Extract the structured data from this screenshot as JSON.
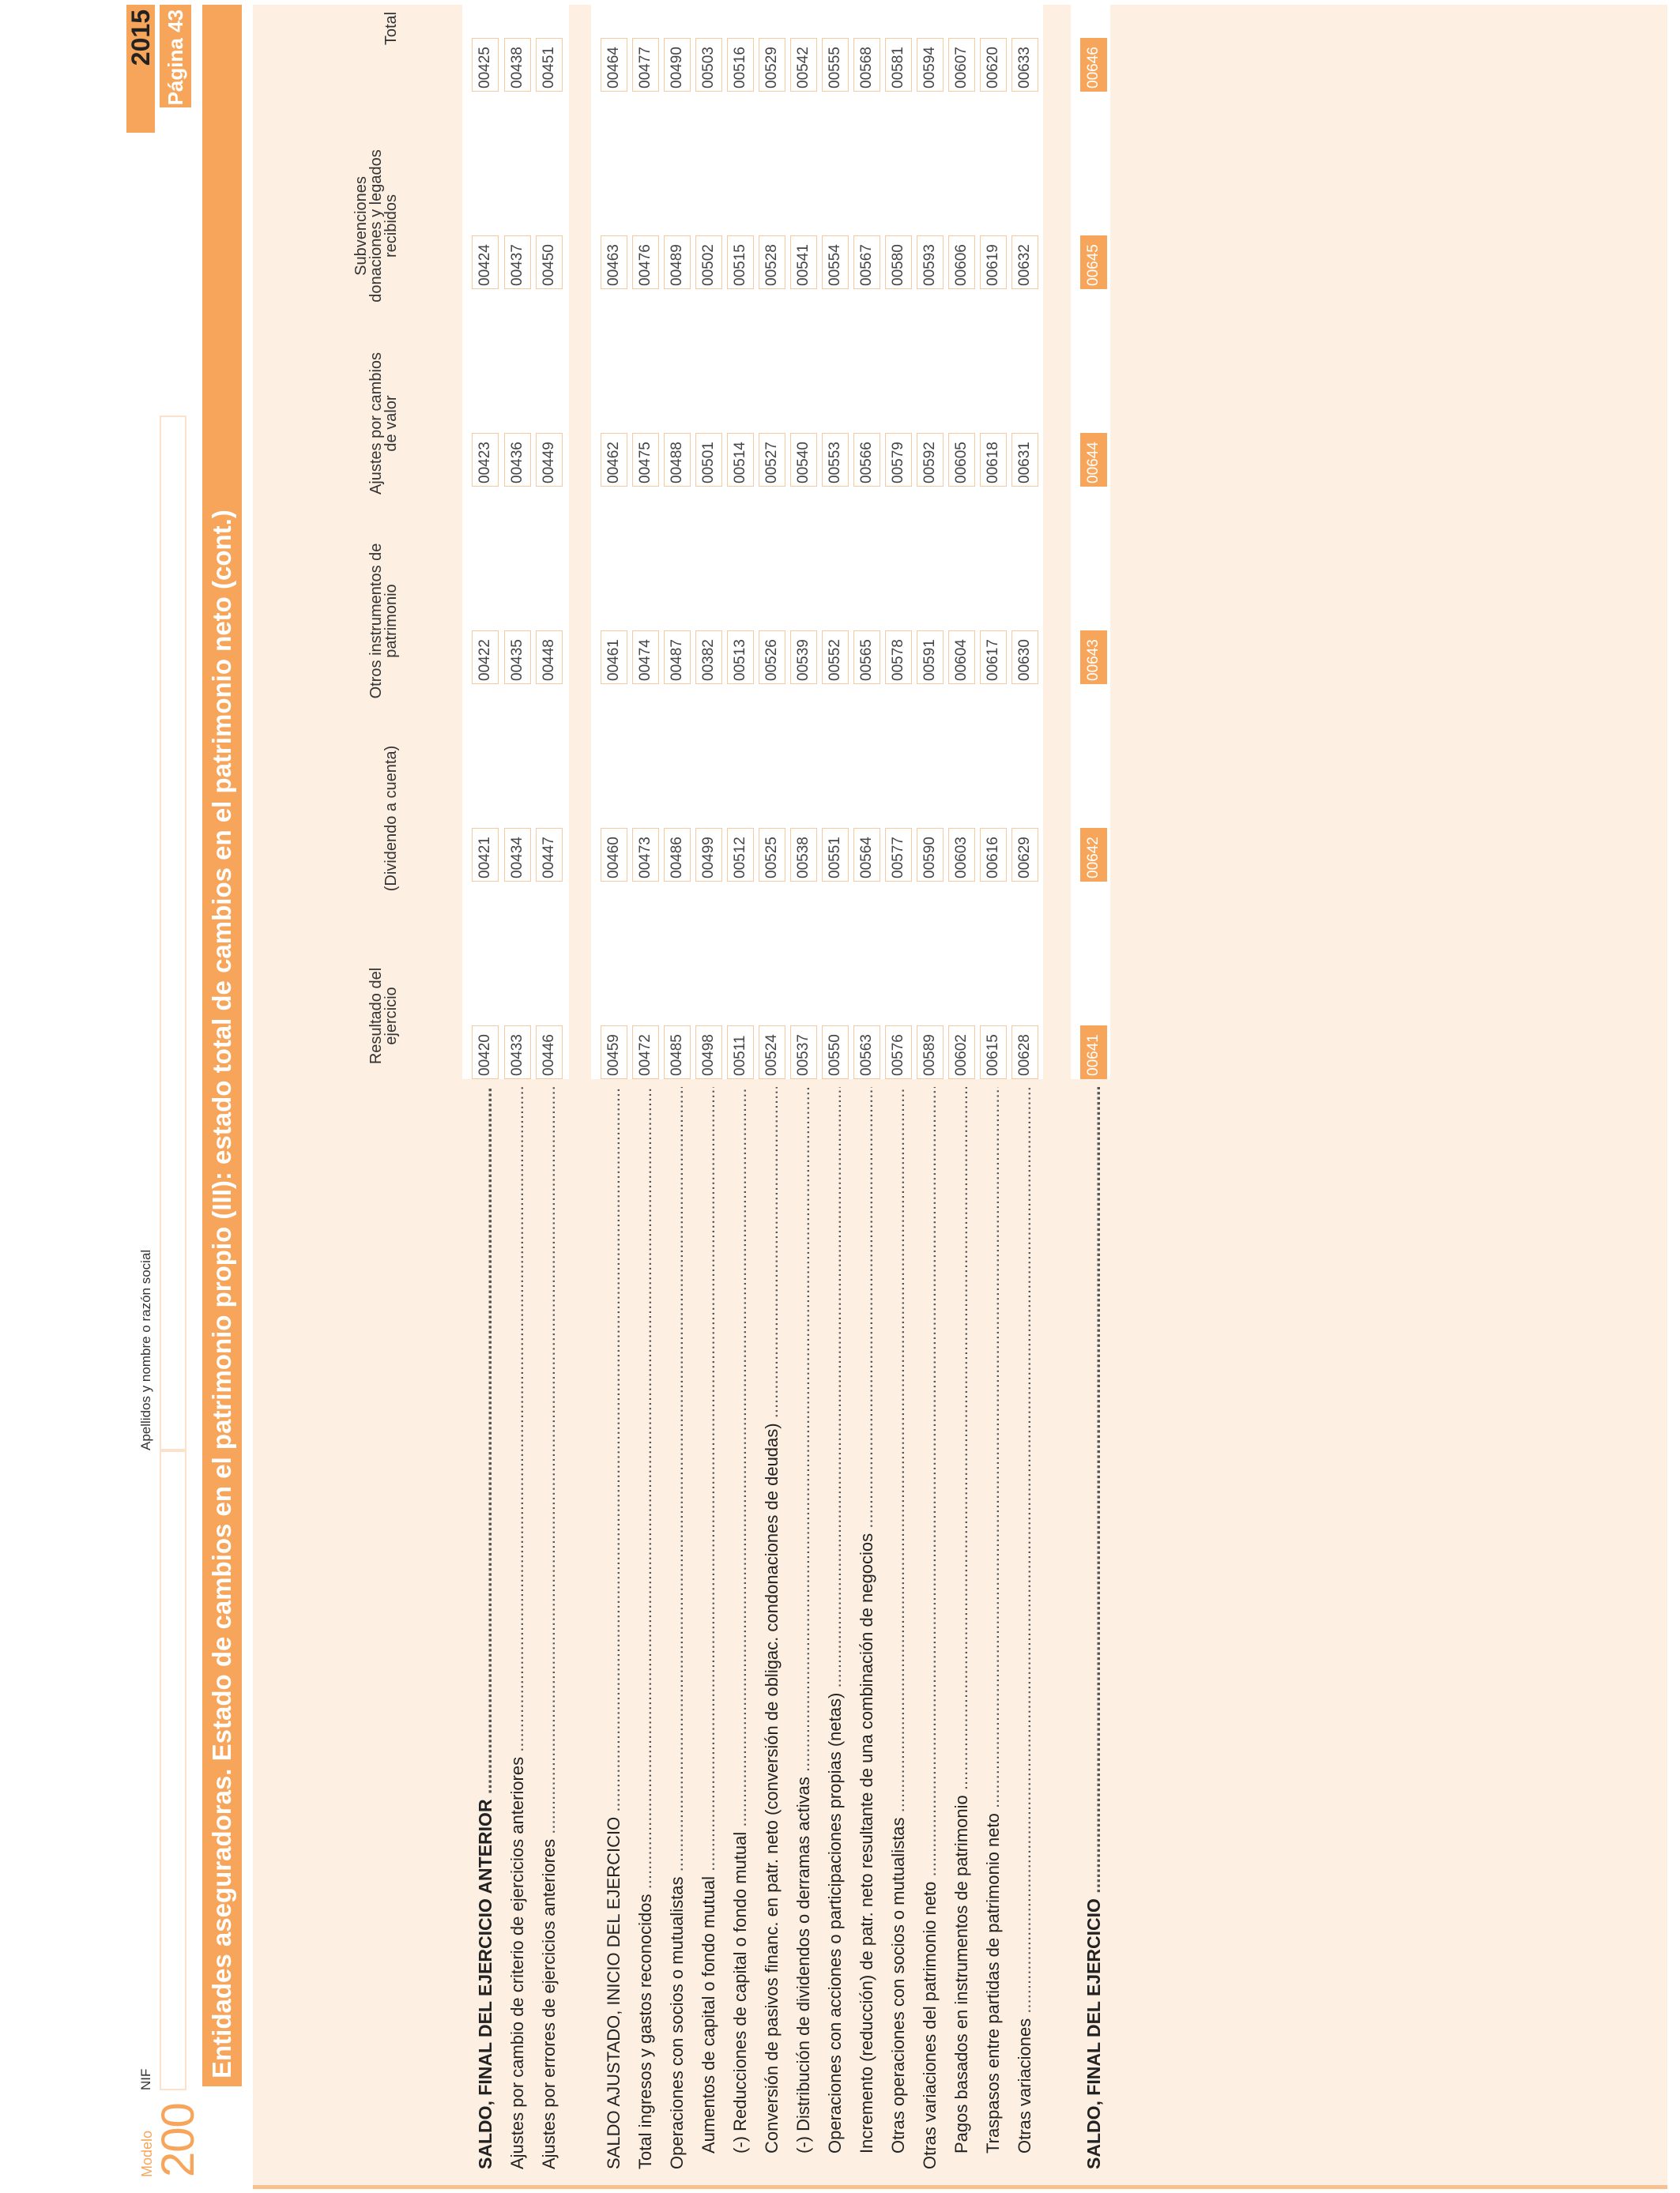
{
  "form": {
    "modelo_label": "Modelo",
    "modelo_number": "200",
    "nif_label": "NIF",
    "name_label": "Apellidos y nombre o razón social",
    "year": "2015",
    "page": "Página 43",
    "title": "Entidades aseguradoras. Estado de cambios en el patrimonio propio (III): estado total de cambios en el patrimonio neto (cont.)"
  },
  "columns": [
    "Resultado del ejercicio",
    "(Dividendo a cuenta)",
    "Otros instrumentos de patrimonio",
    "Ajustes por cambios de valor",
    "Subvenciones donaciones y legados recibidos",
    "Total"
  ],
  "rows": [
    {
      "label": "SALDO, FINAL DEL EJERCICIO ANTERIOR",
      "style": "bold",
      "codes": [
        "00420",
        "00421",
        "00422",
        "00423",
        "00424",
        "00425"
      ]
    },
    {
      "label": "Ajustes por cambio de criterio de ejercicios anteriores",
      "style": "normal",
      "codes": [
        "00433",
        "00434",
        "00435",
        "00436",
        "00437",
        "00438"
      ]
    },
    {
      "label": "Ajustes por errores de ejercicios anteriores",
      "style": "normal",
      "codes": [
        "00446",
        "00447",
        "00448",
        "00449",
        "00450",
        "00451"
      ]
    },
    {
      "label": "SALDO AJUSTADO, INICIO DEL EJERCICIO",
      "style": "normal",
      "codes": [
        "00459",
        "00460",
        "00461",
        "00462",
        "00463",
        "00464"
      ]
    },
    {
      "label": "Total ingresos y gastos reconocidos",
      "style": "normal",
      "codes": [
        "00472",
        "00473",
        "00474",
        "00475",
        "00476",
        "00477"
      ]
    },
    {
      "label": "Operaciones con socios o mutualistas",
      "style": "normal",
      "codes": [
        "00485",
        "00486",
        "00487",
        "00488",
        "00489",
        "00490"
      ]
    },
    {
      "label": "Aumentos de capital o fondo mutual",
      "style": "indent",
      "codes": [
        "00498",
        "00499",
        "00382",
        "00501",
        "00502",
        "00503"
      ]
    },
    {
      "label": "(-) Reducciones de capital o fondo mutual",
      "style": "indent",
      "codes": [
        "00511",
        "00512",
        "00513",
        "00514",
        "00515",
        "00516"
      ]
    },
    {
      "label": "Conversión de pasivos financ. en patr. neto (conversión de obligac. condonaciones de deudas)",
      "style": "indent",
      "codes": [
        "00524",
        "00525",
        "00526",
        "00527",
        "00528",
        "00529"
      ]
    },
    {
      "label": "(-) Distribución de dividendos o derramas activas",
      "style": "indent",
      "codes": [
        "00537",
        "00538",
        "00539",
        "00540",
        "00541",
        "00542"
      ]
    },
    {
      "label": "Operaciones con acciones o participaciones propias (netas)",
      "style": "indent",
      "codes": [
        "00550",
        "00551",
        "00552",
        "00553",
        "00554",
        "00555"
      ]
    },
    {
      "label": "Incremento (reducción) de patr. neto resultante de una combinación de negocios",
      "style": "indent",
      "codes": [
        "00563",
        "00564",
        "00565",
        "00566",
        "00567",
        "00568"
      ]
    },
    {
      "label": "Otras operaciones con socios o mutualistas",
      "style": "indent",
      "codes": [
        "00576",
        "00577",
        "00578",
        "00579",
        "00580",
        "00581"
      ]
    },
    {
      "label": "Otras variaciones del patrimonio neto",
      "style": "normal",
      "codes": [
        "00589",
        "00590",
        "00591",
        "00592",
        "00593",
        "00594"
      ]
    },
    {
      "label": "Pagos basados en instrumentos de patrimonio",
      "style": "indent",
      "codes": [
        "00602",
        "00603",
        "00604",
        "00605",
        "00606",
        "00607"
      ]
    },
    {
      "label": "Traspasos entre partidas de patrimonio neto",
      "style": "indent",
      "codes": [
        "00615",
        "00616",
        "00617",
        "00618",
        "00619",
        "00620"
      ]
    },
    {
      "label": "Otras variaciones",
      "style": "indent",
      "codes": [
        "00628",
        "00629",
        "00630",
        "00631",
        "00632",
        "00633"
      ]
    },
    {
      "label": "SALDO, FINAL DEL EJERCICIO",
      "style": "bold",
      "codes": [
        "00641",
        "00642",
        "00643",
        "00644",
        "00645",
        "00646"
      ]
    }
  ]
}
